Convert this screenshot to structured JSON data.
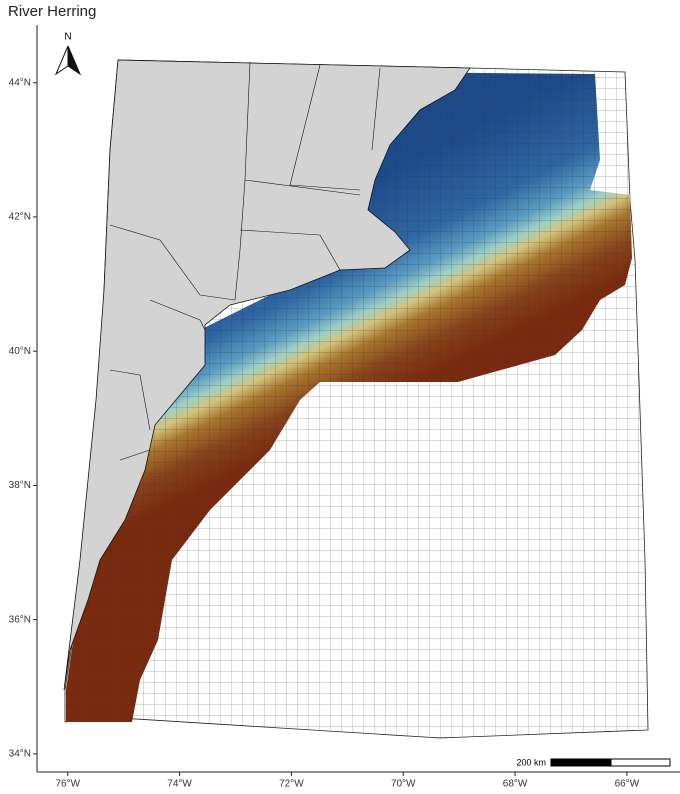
{
  "map": {
    "title": "River Herring",
    "north_label": "N",
    "scale_label": "200 km",
    "xlim": [
      -76.55,
      -65.05
    ],
    "ylim": [
      33.73,
      44.86
    ],
    "xticks": [
      {
        "value": -76,
        "label": "76°W"
      },
      {
        "value": -74,
        "label": "74°W"
      },
      {
        "value": -72,
        "label": "72°W"
      },
      {
        "value": -70,
        "label": "70°W"
      },
      {
        "value": -68,
        "label": "68°W"
      },
      {
        "value": -66,
        "label": "66°W"
      }
    ],
    "yticks": [
      {
        "value": 34,
        "label": "34°N"
      },
      {
        "value": 36,
        "label": "36°N"
      },
      {
        "value": 38,
        "label": "38°N"
      },
      {
        "value": 40,
        "label": "40°N"
      },
      {
        "value": 42,
        "label": "42°N"
      },
      {
        "value": 44,
        "label": "44°N"
      }
    ]
  }
}
